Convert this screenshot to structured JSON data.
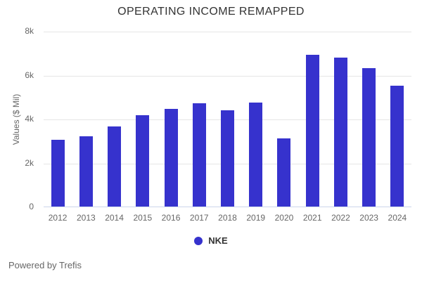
{
  "chart_data": {
    "type": "bar",
    "title": "OPERATING INCOME REMAPPED",
    "categories": [
      "2012",
      "2013",
      "2014",
      "2015",
      "2016",
      "2017",
      "2018",
      "2019",
      "2020",
      "2021",
      "2022",
      "2023",
      "2024"
    ],
    "series": [
      {
        "name": "NKE",
        "color": "#3632cd",
        "values": [
          3050,
          3200,
          3650,
          4150,
          4450,
          4700,
          4400,
          4750,
          3100,
          6900,
          6800,
          6300,
          5500
        ]
      }
    ],
    "xlabel": "",
    "ylabel": "Values ($ Mil)",
    "ylim": [
      0,
      8000
    ],
    "yticks": [
      {
        "value": 0,
        "label": "0"
      },
      {
        "value": 2000,
        "label": "2k"
      },
      {
        "value": 4000,
        "label": "4k"
      },
      {
        "value": 6000,
        "label": "6k"
      },
      {
        "value": 8000,
        "label": "8k"
      }
    ],
    "grid": true,
    "legend_position": "bottom"
  },
  "legend": {
    "items": [
      {
        "label": "NKE",
        "color": "#3632cd"
      }
    ]
  },
  "footer": {
    "text": "Powered by Trefis"
  },
  "colors": {
    "bar": "#3632cd",
    "title_text": "#333333",
    "axis_label": "#666666",
    "gridline": "#e6e6e6",
    "axis_line": "#ccd6eb",
    "background": "#ffffff"
  }
}
